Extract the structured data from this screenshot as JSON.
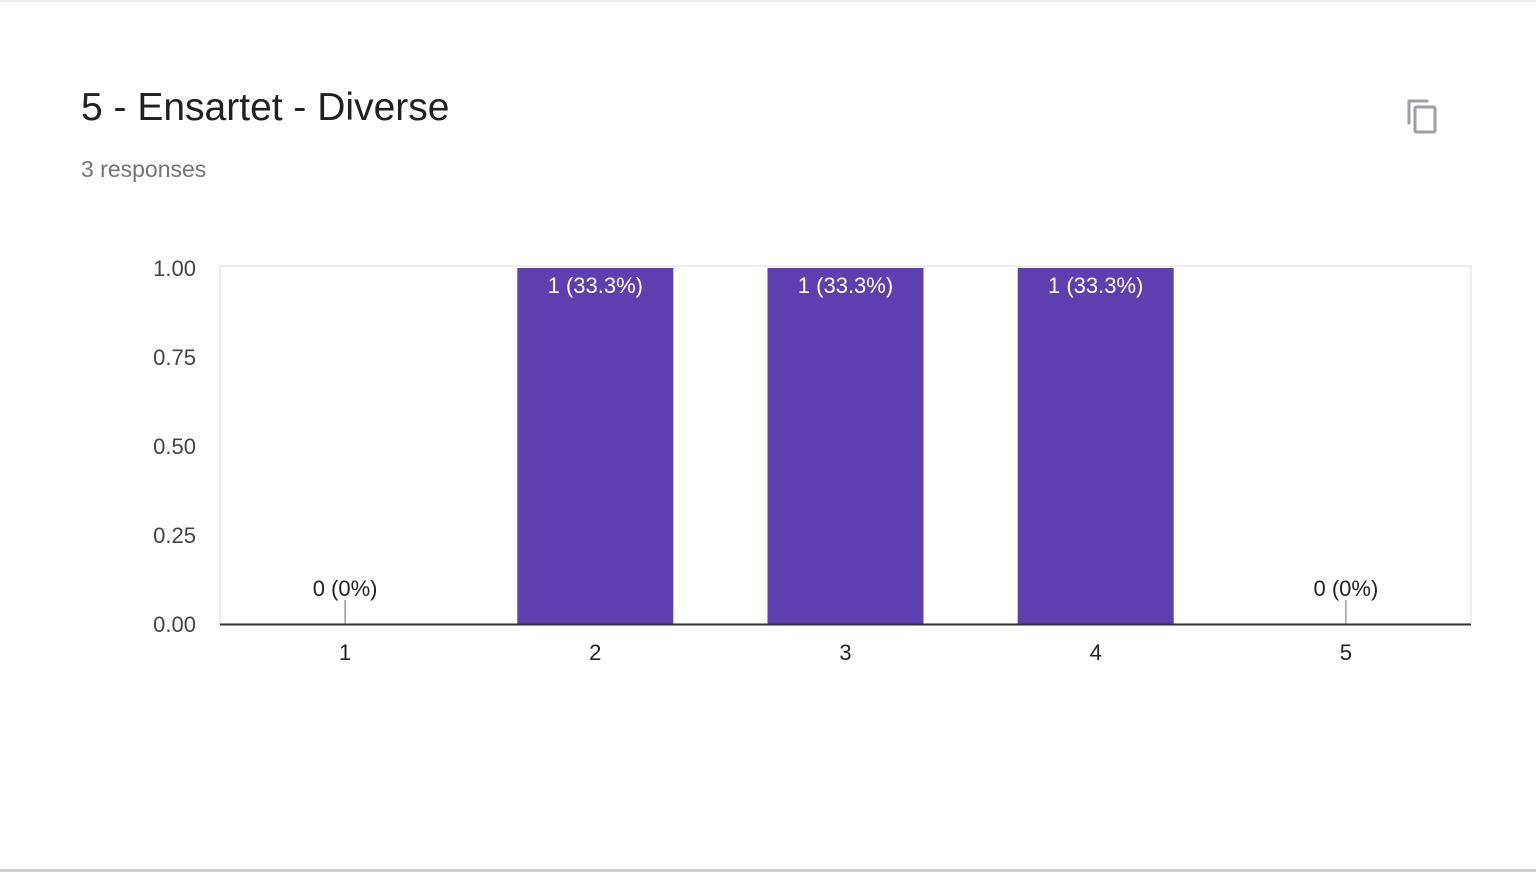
{
  "question": {
    "title": "5 - Ensartet - Diverse",
    "responses": "3 responses"
  },
  "icons": {
    "copy": "copy-icon"
  },
  "colors": {
    "bar": "#5e3faf",
    "axis": "#333333",
    "frame": "#e8e8e8"
  },
  "chart_data": {
    "type": "bar",
    "categories": [
      "1",
      "2",
      "3",
      "4",
      "5"
    ],
    "values": [
      0,
      1,
      1,
      1,
      0
    ],
    "data_labels": [
      "0 (0%)",
      "1 (33.3%)",
      "1 (33.3%)",
      "1 (33.3%)",
      "0 (0%)"
    ],
    "yticks": [
      "0.00",
      "0.25",
      "0.50",
      "0.75",
      "1.00"
    ],
    "ylim": [
      0,
      1
    ],
    "grid": false,
    "legend": "none"
  }
}
